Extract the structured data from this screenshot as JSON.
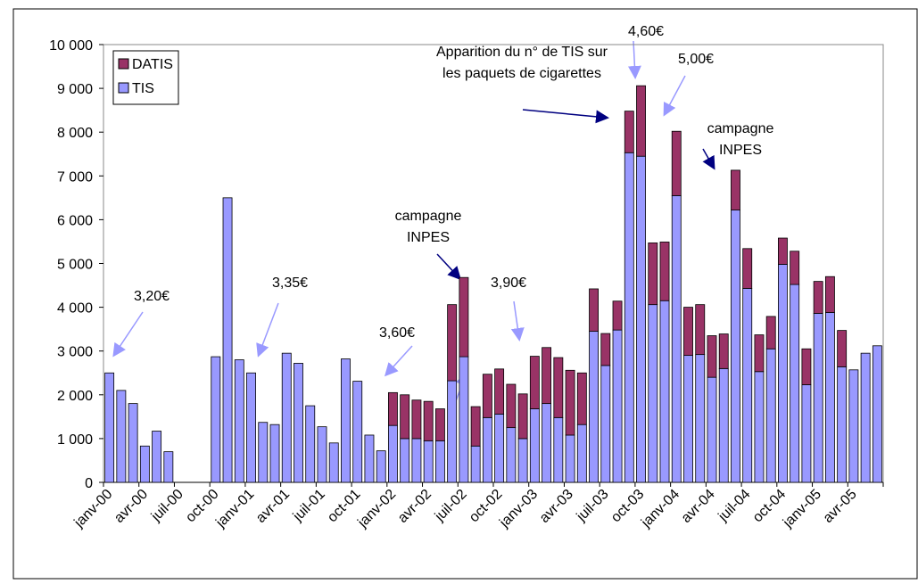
{
  "chart_data": {
    "type": "bar",
    "stacked": true,
    "categories": [
      "janv-00",
      null,
      null,
      "avr-00",
      null,
      null,
      "juil-00",
      null,
      null,
      "oct-00",
      null,
      null,
      "janv-01",
      null,
      null,
      "avr-01",
      null,
      null,
      "juil-01",
      null,
      null,
      "oct-01",
      null,
      null,
      "janv-02",
      null,
      null,
      "avr-02",
      null,
      null,
      "juil-02",
      null,
      null,
      "oct-02",
      null,
      null,
      "janv-03",
      null,
      null,
      "avr-03",
      null,
      null,
      "juil-03",
      null,
      null,
      "oct-03",
      null,
      null,
      "janv-04",
      null,
      null,
      "avr-04",
      null,
      null,
      "juil-04",
      null,
      null,
      "oct-04",
      null,
      null,
      "janv-05",
      null,
      null,
      "avr-05",
      null,
      null
    ],
    "series": [
      {
        "name": "TIS",
        "color": "#9999ff",
        "values": [
          2500,
          2100,
          1800,
          830,
          1170,
          700,
          null,
          null,
          null,
          2870,
          6500,
          2800,
          2500,
          1370,
          1320,
          2950,
          2720,
          1750,
          1270,
          900,
          2820,
          2310,
          1080,
          720,
          1300,
          1000,
          1000,
          950,
          950,
          2320,
          2870,
          830,
          1480,
          1560,
          1250,
          1000,
          1680,
          1800,
          1480,
          1080,
          1320,
          3450,
          2670,
          3480,
          7530,
          7450,
          4060,
          4150,
          6550,
          2900,
          2920,
          2400,
          2600,
          6220,
          4430,
          2530,
          3050,
          4980,
          4520,
          2230,
          3860,
          3880,
          2640,
          2570,
          2950,
          3120
        ]
      },
      {
        "name": "DATIS",
        "color": "#993366",
        "values": [
          null,
          null,
          null,
          null,
          null,
          null,
          null,
          null,
          null,
          null,
          null,
          null,
          null,
          null,
          null,
          null,
          null,
          null,
          null,
          null,
          null,
          null,
          null,
          null,
          750,
          1000,
          880,
          900,
          730,
          1740,
          1810,
          900,
          990,
          1030,
          990,
          1020,
          1200,
          1280,
          1370,
          1480,
          1180,
          970,
          730,
          660,
          950,
          1610,
          1410,
          1340,
          1470,
          1100,
          1140,
          950,
          790,
          910,
          910,
          840,
          740,
          600,
          760,
          820,
          730,
          820,
          830,
          null,
          null,
          null
        ]
      }
    ],
    "ylim": [
      0,
      10000
    ],
    "yticks": [
      0,
      {
        "value": 1000,
        "label": "1 000"
      },
      {
        "value": 2000,
        "label": "2 000"
      },
      {
        "value": 3000,
        "label": "3 000"
      },
      {
        "value": 4000,
        "label": "4 000"
      },
      {
        "value": 5000,
        "label": "5 000"
      },
      {
        "value": 6000,
        "label": "6 000"
      },
      {
        "value": 7000,
        "label": "7 000"
      },
      {
        "value": 8000,
        "label": "8 000"
      },
      {
        "value": 9000,
        "label": "9 000"
      },
      {
        "value": 10000,
        "label": "10 000"
      }
    ],
    "legend": "top-left",
    "annotations": [
      "3,20€",
      "3,35€",
      "3,60€",
      "3,90€",
      "4,60€",
      "5,00€",
      [
        "campagne",
        "INPES"
      ],
      [
        "campagne",
        "INPES"
      ],
      [
        "Apparition du n° de TIS sur",
        "les paquets de cigarettes"
      ]
    ]
  }
}
